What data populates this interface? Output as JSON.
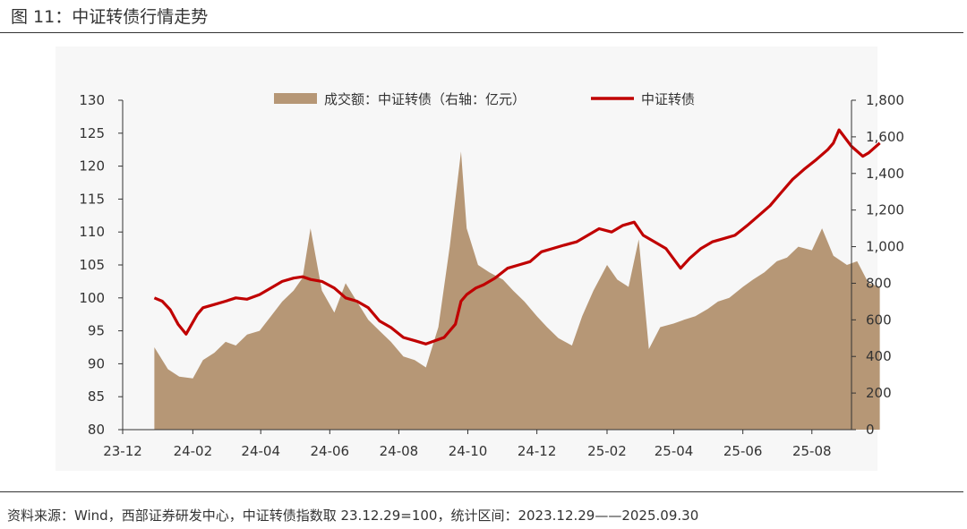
{
  "figure": {
    "title": "图 11：中证转债行情走势",
    "source": "资料来源：Wind，西部证券研发中心，中证转债指数取 23.12.29=100，统计区间：2023.12.29——2025.09.30"
  },
  "colors": {
    "area": "#b69776",
    "line": "#c00000",
    "axis": "#333333",
    "panel": "#f7f7f7"
  },
  "chart_data": {
    "type": "line",
    "grid": false,
    "legend_position": "top-center",
    "x_ticks": [
      "23-12",
      "24-02",
      "24-04",
      "24-06",
      "24-08",
      "24-10",
      "24-12",
      "25-02",
      "25-04",
      "25-06",
      "25-08"
    ],
    "y_left": {
      "ticks": [
        "80",
        "85",
        "90",
        "95",
        "100",
        "105",
        "110",
        "115",
        "120",
        "125",
        "130"
      ],
      "range": [
        80,
        130
      ]
    },
    "y_right": {
      "ticks": [
        "0",
        "200",
        "400",
        "600",
        "800",
        "1,000",
        "1,200",
        "1,400",
        "1,600",
        "1,800"
      ],
      "range": [
        0,
        1800
      ]
    },
    "series": [
      {
        "name": "成交额：中证转债（右轴：亿元）",
        "type": "area",
        "axis": "right",
        "x": [
          "2023-12-29",
          "2024-01-10",
          "2024-01-20",
          "2024-02-01",
          "2024-02-10",
          "2024-02-20",
          "2024-03-01",
          "2024-03-10",
          "2024-03-20",
          "2024-03-31",
          "2024-04-10",
          "2024-04-20",
          "2024-04-30",
          "2024-05-08",
          "2024-05-15",
          "2024-05-25",
          "2024-06-05",
          "2024-06-15",
          "2024-06-25",
          "2024-07-05",
          "2024-07-15",
          "2024-07-25",
          "2024-08-05",
          "2024-08-15",
          "2024-08-25",
          "2024-09-05",
          "2024-09-15",
          "2024-09-25",
          "2024-09-30",
          "2024-10-10",
          "2024-10-20",
          "2024-11-01",
          "2024-11-10",
          "2024-11-20",
          "2024-12-01",
          "2024-12-10",
          "2024-12-20",
          "2025-01-01",
          "2025-01-10",
          "2025-01-20",
          "2025-02-01",
          "2025-02-10",
          "2025-02-20",
          "2025-03-01",
          "2025-03-10",
          "2025-03-20",
          "2025-04-01",
          "2025-04-10",
          "2025-04-20",
          "2025-05-01",
          "2025-05-10",
          "2025-05-20",
          "2025-06-01",
          "2025-06-10",
          "2025-06-20",
          "2025-07-01",
          "2025-07-10",
          "2025-07-20",
          "2025-08-01",
          "2025-08-10",
          "2025-08-20",
          "2025-09-01",
          "2025-09-10",
          "2025-09-20",
          "2025-09-30"
        ],
        "values": [
          450,
          330,
          290,
          280,
          380,
          420,
          480,
          460,
          520,
          540,
          620,
          700,
          760,
          830,
          1100,
          760,
          640,
          800,
          700,
          600,
          540,
          480,
          400,
          380,
          340,
          560,
          1000,
          1520,
          1100,
          900,
          860,
          820,
          760,
          700,
          620,
          560,
          500,
          460,
          620,
          760,
          900,
          820,
          780,
          1040,
          440,
          560,
          580,
          600,
          620,
          660,
          700,
          720,
          780,
          820,
          860,
          920,
          940,
          1000,
          980,
          1100,
          950,
          900,
          920,
          800,
          780
        ]
      },
      {
        "name": "中证转债",
        "type": "line",
        "axis": "left",
        "x": [
          "2023-12-29",
          "2024-01-05",
          "2024-01-12",
          "2024-01-19",
          "2024-01-26",
          "2024-02-05",
          "2024-02-10",
          "2024-02-20",
          "2024-03-01",
          "2024-03-10",
          "2024-03-20",
          "2024-03-31",
          "2024-04-10",
          "2024-04-20",
          "2024-04-30",
          "2024-05-08",
          "2024-05-15",
          "2024-05-25",
          "2024-06-05",
          "2024-06-15",
          "2024-06-25",
          "2024-07-05",
          "2024-07-15",
          "2024-07-25",
          "2024-08-05",
          "2024-08-15",
          "2024-08-25",
          "2024-09-10",
          "2024-09-20",
          "2024-09-25",
          "2024-09-30",
          "2024-10-08",
          "2024-10-15",
          "2024-10-25",
          "2024-11-05",
          "2024-11-15",
          "2024-11-25",
          "2024-12-05",
          "2024-12-15",
          "2024-12-25",
          "2025-01-05",
          "2025-01-15",
          "2025-01-25",
          "2025-02-05",
          "2025-02-15",
          "2025-02-25",
          "2025-03-05",
          "2025-03-15",
          "2025-03-25",
          "2025-04-07",
          "2025-04-15",
          "2025-04-25",
          "2025-05-05",
          "2025-05-15",
          "2025-05-25",
          "2025-06-05",
          "2025-06-15",
          "2025-06-25",
          "2025-07-05",
          "2025-07-15",
          "2025-07-25",
          "2025-08-05",
          "2025-08-15",
          "2025-08-20",
          "2025-08-25",
          "2025-09-05",
          "2025-09-15",
          "2025-09-20",
          "2025-09-30"
        ],
        "values": [
          100,
          99.5,
          98.2,
          96.0,
          94.5,
          97.5,
          98.5,
          99.0,
          99.5,
          100.0,
          99.8,
          100.5,
          101.5,
          102.5,
          103.0,
          103.2,
          102.8,
          102.5,
          101.5,
          100.0,
          99.5,
          98.5,
          96.5,
          95.5,
          94.0,
          93.5,
          93.0,
          94.0,
          96.0,
          99.5,
          100.5,
          101.5,
          102.0,
          103.0,
          104.5,
          105.0,
          105.5,
          107.0,
          107.5,
          108.0,
          108.5,
          109.5,
          110.5,
          110.0,
          111.0,
          111.5,
          109.5,
          108.5,
          107.5,
          104.5,
          106.0,
          107.5,
          108.5,
          109.0,
          109.5,
          111.0,
          112.5,
          114.0,
          116.0,
          118.0,
          119.5,
          121.0,
          122.5,
          123.5,
          125.5,
          123.0,
          121.5,
          122.0,
          123.5
        ]
      }
    ]
  }
}
